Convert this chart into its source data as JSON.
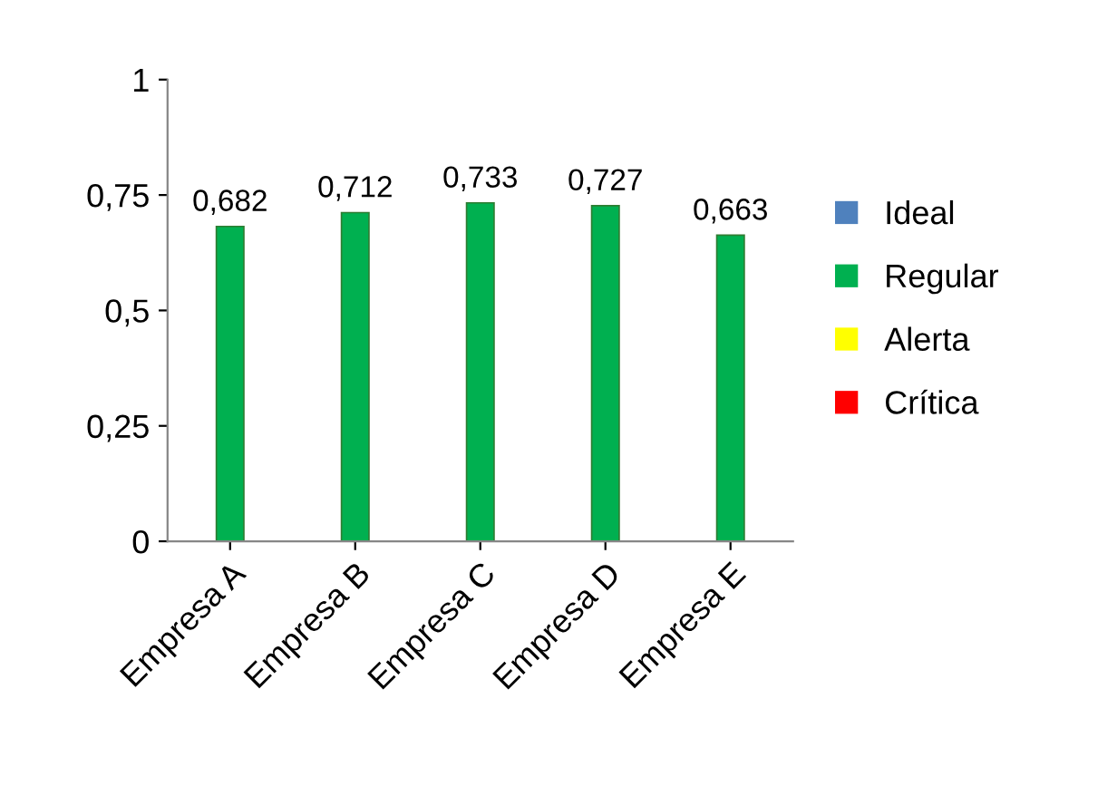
{
  "chart_data": {
    "type": "bar",
    "stacked": true,
    "categories": [
      "Empresa A",
      "Empresa B",
      "Empresa C",
      "Empresa D",
      "Empresa E"
    ],
    "series": [
      {
        "name": "Ideal",
        "color": "#4f81bd",
        "values": [
          null,
          null,
          null,
          null,
          null
        ]
      },
      {
        "name": "Regular",
        "color": "#00b050",
        "values": [
          0.682,
          0.712,
          0.733,
          0.727,
          0.663
        ],
        "value_labels": [
          "0,682",
          "0,712",
          "0,733",
          "0,727",
          "0,663"
        ]
      },
      {
        "name": "Alerta",
        "color": "#ffff00",
        "values": [
          null,
          null,
          null,
          null,
          null
        ]
      },
      {
        "name": "Crítica",
        "color": "#ff0000",
        "values": [
          null,
          null,
          null,
          null,
          null
        ]
      }
    ],
    "ylim": [
      0,
      1
    ],
    "yticks": [
      0,
      {
        "value": 0.25,
        "label": "0,25"
      },
      {
        "value": 0.5,
        "label": "0,5"
      },
      {
        "value": 0.75,
        "label": "0,75"
      },
      1
    ],
    "grid": false,
    "legend": "right"
  }
}
